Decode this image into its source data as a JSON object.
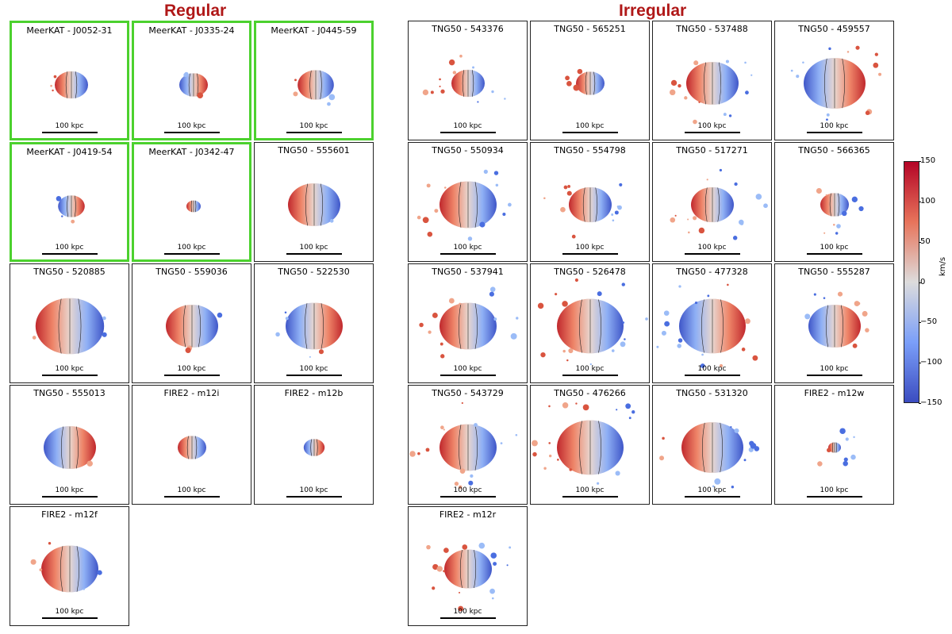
{
  "groups": {
    "regular": {
      "title": "Regular"
    },
    "irregular": {
      "title": "Irregular"
    }
  },
  "scale_label": "100 kpc",
  "colorbar": {
    "unit": "km/s",
    "ticks": [
      "150",
      "100",
      "50",
      "0",
      "−50",
      "−100",
      "−150"
    ],
    "range": [
      -150,
      150
    ],
    "colors": {
      "positive": "#b40426",
      "zero": "#dddcdc",
      "negative": "#3b4cc0"
    }
  },
  "panels": [
    {
      "label": "MeerKAT - J0052-31",
      "group": "regular",
      "highlight": true,
      "size": 0.35,
      "dir": 1,
      "spread": 0.1
    },
    {
      "label": "MeerKAT - J0335-24",
      "group": "regular",
      "highlight": true,
      "size": 0.3,
      "dir": -1,
      "spread": 0.1
    },
    {
      "label": "MeerKAT - J0445-59",
      "group": "regular",
      "highlight": true,
      "size": 0.38,
      "dir": 1,
      "spread": 0.15
    },
    {
      "label": "MeerKAT - J0419-54",
      "group": "regular",
      "highlight": true,
      "size": 0.28,
      "dir": -1,
      "spread": 0.1
    },
    {
      "label": "MeerKAT - J0342-47",
      "group": "regular",
      "highlight": true,
      "size": 0.15,
      "dir": 1,
      "spread": 0.0
    },
    {
      "label": "TNG50 - 555601",
      "group": "regular",
      "highlight": false,
      "size": 0.55,
      "dir": 1,
      "spread": 0.05
    },
    {
      "label": "TNG50 - 520885",
      "group": "regular",
      "highlight": false,
      "size": 0.72,
      "dir": 1,
      "spread": 0.1
    },
    {
      "label": "TNG50 - 559036",
      "group": "regular",
      "highlight": false,
      "size": 0.55,
      "dir": 1,
      "spread": 0.1
    },
    {
      "label": "TNG50 - 522530",
      "group": "regular",
      "highlight": false,
      "size": 0.6,
      "dir": -1,
      "spread": 0.2
    },
    {
      "label": "TNG50 - 555013",
      "group": "regular",
      "highlight": false,
      "size": 0.55,
      "dir": -1,
      "spread": 0.05
    },
    {
      "label": "FIRE2 - m12i",
      "group": "regular",
      "highlight": false,
      "size": 0.3,
      "dir": 1,
      "spread": 0.0
    },
    {
      "label": "FIRE2 - m12b",
      "group": "regular",
      "highlight": false,
      "size": 0.22,
      "dir": -1,
      "spread": 0.0
    },
    {
      "label": "FIRE2 - m12f",
      "group": "regular",
      "highlight": false,
      "size": 0.6,
      "dir": 1,
      "spread": 0.2
    },
    {
      "label": "TNG50 - 543376",
      "group": "irregular",
      "highlight": false,
      "size": 0.35,
      "dir": 1,
      "spread": 0.45
    },
    {
      "label": "TNG50 - 565251",
      "group": "irregular",
      "highlight": false,
      "size": 0.3,
      "dir": 1,
      "spread": 0.15
    },
    {
      "label": "TNG50 - 537488",
      "group": "irregular",
      "highlight": false,
      "size": 0.55,
      "dir": 1,
      "spread": 0.5
    },
    {
      "label": "TNG50 - 459557",
      "group": "irregular",
      "highlight": false,
      "size": 0.65,
      "dir": -1,
      "spread": 0.5
    },
    {
      "label": "TNG50 - 550934",
      "group": "irregular",
      "highlight": false,
      "size": 0.6,
      "dir": 1,
      "spread": 0.5
    },
    {
      "label": "TNG50 - 554798",
      "group": "irregular",
      "highlight": false,
      "size": 0.45,
      "dir": 1,
      "spread": 0.45
    },
    {
      "label": "TNG50 - 517271",
      "group": "irregular",
      "highlight": false,
      "size": 0.45,
      "dir": 1,
      "spread": 0.55
    },
    {
      "label": "TNG50 - 566365",
      "group": "irregular",
      "highlight": false,
      "size": 0.3,
      "dir": 1,
      "spread": 0.35
    },
    {
      "label": "TNG50 - 537941",
      "group": "irregular",
      "highlight": false,
      "size": 0.6,
      "dir": 1,
      "spread": 0.45
    },
    {
      "label": "TNG50 - 526478",
      "group": "irregular",
      "highlight": false,
      "size": 0.7,
      "dir": 1,
      "spread": 0.6
    },
    {
      "label": "TNG50 - 477328",
      "group": "irregular",
      "highlight": false,
      "size": 0.7,
      "dir": -1,
      "spread": 0.6
    },
    {
      "label": "TNG50 - 555287",
      "group": "irregular",
      "highlight": false,
      "size": 0.55,
      "dir": -1,
      "spread": 0.35
    },
    {
      "label": "TNG50 - 543729",
      "group": "irregular",
      "highlight": false,
      "size": 0.6,
      "dir": 1,
      "spread": 0.55
    },
    {
      "label": "TNG50 - 476266",
      "group": "irregular",
      "highlight": false,
      "size": 0.7,
      "dir": 1,
      "spread": 0.7
    },
    {
      "label": "TNG50 - 531320",
      "group": "irregular",
      "highlight": false,
      "size": 0.65,
      "dir": 1,
      "spread": 0.45
    },
    {
      "label": "FIRE2 - m12w",
      "group": "irregular",
      "highlight": false,
      "size": 0.1,
      "dir": 1,
      "spread": 0.3
    },
    {
      "label": "FIRE2 - m12r",
      "group": "irregular",
      "highlight": false,
      "size": 0.5,
      "dir": 1,
      "spread": 0.6
    }
  ]
}
